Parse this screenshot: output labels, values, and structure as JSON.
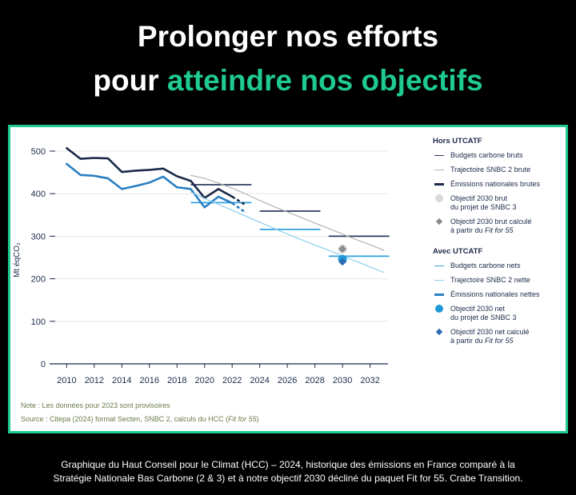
{
  "header": {
    "line1": "Prolonger nos efforts",
    "line2_prefix": "pour ",
    "line2_accent": "atteindre nos objectifs"
  },
  "colors": {
    "accent": "#1fcb8e",
    "budget_brut": "#2b3b63",
    "traj_brut": "#b3b3b3",
    "emis_brut": "#1b2a4a",
    "obj_snbc3_brut": "#d9d9d9",
    "obj_f55_brut": "#8c8c8c",
    "budget_net": "#2fa3e0",
    "traj_net": "#8ccfee",
    "emis_net": "#2a7fc1",
    "obj_snbc3_net": "#1f9ad6",
    "obj_f55_net": "#2a6db0"
  },
  "chart_data": {
    "type": "line",
    "ylabel": "Mt éqCO₂",
    "ylim": [
      0,
      530
    ],
    "xlim": [
      2009.4,
      2033.3
    ],
    "yticks": [
      0,
      100,
      200,
      300,
      400,
      500
    ],
    "xticks": [
      2010,
      2012,
      2014,
      2016,
      2018,
      2020,
      2022,
      2024,
      2026,
      2028,
      2030,
      2032
    ],
    "grid": "horizontal",
    "series": [
      {
        "name": "Émissions nationales brutes",
        "style": "thick",
        "color_key": "emis_brut",
        "x": [
          2010,
          2011,
          2012,
          2013,
          2014,
          2015,
          2016,
          2017,
          2018,
          2019,
          2020,
          2021,
          2022,
          2023
        ],
        "y": [
          507,
          482,
          484,
          483,
          451,
          454,
          456,
          459,
          441,
          430,
          390,
          411,
          393,
          373
        ],
        "provisional_from": 2022
      },
      {
        "name": "Émissions nationales nettes",
        "style": "thick",
        "color_key": "emis_net",
        "x": [
          2010,
          2011,
          2012,
          2013,
          2014,
          2015,
          2016,
          2017,
          2018,
          2019,
          2020,
          2021,
          2022,
          2023
        ],
        "y": [
          470,
          444,
          442,
          436,
          411,
          418,
          426,
          440,
          415,
          411,
          368,
          393,
          378,
          355
        ],
        "provisional_from": 2022
      },
      {
        "name": "Trajectoire SNBC 2 brute",
        "style": "thin",
        "color_key": "traj_brut",
        "x": [
          2019,
          2020,
          2021,
          2022,
          2023,
          2024,
          2025,
          2026,
          2027,
          2028,
          2029,
          2030,
          2031,
          2032,
          2033
        ],
        "y": [
          443,
          436,
          425,
          413,
          399,
          384,
          370,
          357,
          344,
          331,
          318,
          305,
          292,
          280,
          267
        ]
      },
      {
        "name": "Trajectoire SNBC 2 nette",
        "style": "thin",
        "color_key": "traj_net",
        "x": [
          2019,
          2020,
          2021,
          2022,
          2023,
          2024,
          2025,
          2026,
          2027,
          2028,
          2029,
          2030,
          2031,
          2032,
          2033
        ],
        "y": [
          404,
          389,
          375,
          361,
          347,
          333,
          319,
          305,
          292,
          279,
          267,
          254,
          241,
          228,
          215
        ]
      }
    ],
    "budgets": [
      {
        "name": "Budgets carbone bruts",
        "color_key": "budget_brut",
        "segments": [
          {
            "x0": 2019,
            "x1": 2023.4,
            "y": 421
          },
          {
            "x0": 2024,
            "x1": 2028.4,
            "y": 359
          },
          {
            "x0": 2029,
            "x1": 2033.4,
            "y": 300
          }
        ]
      },
      {
        "name": "Budgets carbone nets",
        "color_key": "budget_net",
        "segments": [
          {
            "x0": 2019,
            "x1": 2023.4,
            "y": 379
          },
          {
            "x0": 2024,
            "x1": 2028.4,
            "y": 316
          },
          {
            "x0": 2029,
            "x1": 2033.4,
            "y": 253
          }
        ]
      }
    ],
    "markers": [
      {
        "name": "Objectif 2030 brut du projet de SNBC 3",
        "shape": "circle",
        "color_key": "obj_snbc3_brut",
        "x": 2030,
        "y": 270
      },
      {
        "name": "Objectif 2030 brut calculé à partir du Fit for 55",
        "shape": "diamond",
        "color_key": "obj_f55_brut",
        "x": 2030,
        "y": 270
      },
      {
        "name": "Objectif 2030 net du projet de SNBC 3",
        "shape": "circle",
        "color_key": "obj_snbc3_net",
        "x": 2030,
        "y": 246
      },
      {
        "name": "Objectif 2030 net calculé à partir du Fit for 55",
        "shape": "diamond",
        "color_key": "obj_f55_net",
        "x": 2030,
        "y": 240
      }
    ]
  },
  "legend": {
    "group1_title": "Hors UTCATF",
    "group1_items": [
      "Budgets carbone bruts",
      "Trajectoire SNBC 2 brute",
      "Émissions nationales brutes",
      "Objectif 2030 brut",
      "du projet de SNBC 3",
      "Objectif 2030 brut calculé",
      "à partir du ",
      "Fit for 55"
    ],
    "group2_title": "Avec UTCATF",
    "group2_items": [
      "Budgets carbone nets",
      "Trajectoire SNBC 2 nette",
      "Émissions nationales nettes",
      "Objectif 2030 net",
      "du projet de SNBC 3",
      "Objectif 2030 net calculé",
      "à partir du ",
      "Fit for 55"
    ]
  },
  "notes": {
    "note": "Note : Les données pour 2023 sont provisoires",
    "source_prefix": "Source : Citepa (2024) format Secten, SNBC 2,  calculs du HCC (",
    "source_italic": "Fit for 55",
    "source_suffix": ")"
  },
  "caption": {
    "line1": "Graphique du Haut Conseil pour le Climat (HCC) – 2024, historique des émissions en France comparé à la",
    "line2": "Stratégie Nationale Bas Carbone (2 & 3) et à notre objectif 2030 décliné du paquet Fit for 55. Crabe Transition."
  }
}
